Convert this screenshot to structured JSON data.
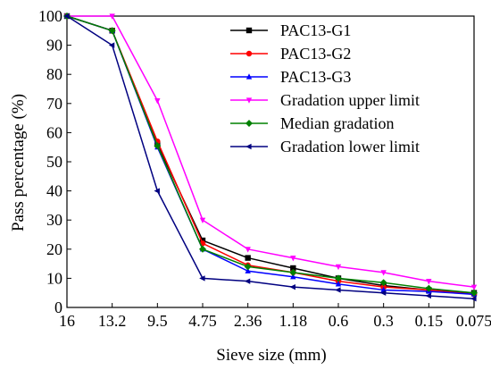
{
  "chart_data": {
    "type": "line",
    "categories": [
      "16",
      "13.2",
      "9.5",
      "4.75",
      "2.36",
      "1.18",
      "0.6",
      "0.3",
      "0.15",
      "0.075"
    ],
    "xlabel": "Sieve size (mm)",
    "ylabel": "Pass percentage (%)",
    "ylim": [
      0,
      100
    ],
    "yticks": [
      "0",
      "10",
      "20",
      "30",
      "40",
      "50",
      "60",
      "70",
      "80",
      "90",
      "100"
    ],
    "grid": false,
    "legend_position": "top-right",
    "series": [
      {
        "name": "PAC13-G1",
        "color": "#000000",
        "marker": "square",
        "values": [
          100,
          95,
          56,
          23,
          17,
          13.5,
          10,
          7.5,
          6,
          5
        ]
      },
      {
        "name": "PAC13-G2",
        "color": "#ff0000",
        "marker": "circle",
        "values": [
          100,
          95,
          57,
          22,
          14.5,
          12,
          9,
          7,
          6,
          4.5
        ]
      },
      {
        "name": "PAC13-G3",
        "color": "#0000ff",
        "marker": "triangle-up",
        "values": [
          100,
          95,
          55,
          20,
          12.5,
          10.5,
          8,
          6,
          5.5,
          4.5
        ]
      },
      {
        "name": "Gradation upper limit",
        "color": "#ff00ff",
        "marker": "triangle-down",
        "values": [
          100,
          100,
          71,
          30,
          20,
          17,
          14,
          12,
          9,
          7
        ]
      },
      {
        "name": "Median gradation",
        "color": "#008000",
        "marker": "diamond",
        "values": [
          100,
          95,
          55.5,
          20,
          14,
          12,
          10,
          8.5,
          6.5,
          5
        ]
      },
      {
        "name": "Gradation lower limit",
        "color": "#000080",
        "marker": "triangle-left",
        "values": [
          100,
          90,
          40,
          10,
          9,
          7,
          6,
          5,
          4,
          3
        ]
      }
    ]
  }
}
